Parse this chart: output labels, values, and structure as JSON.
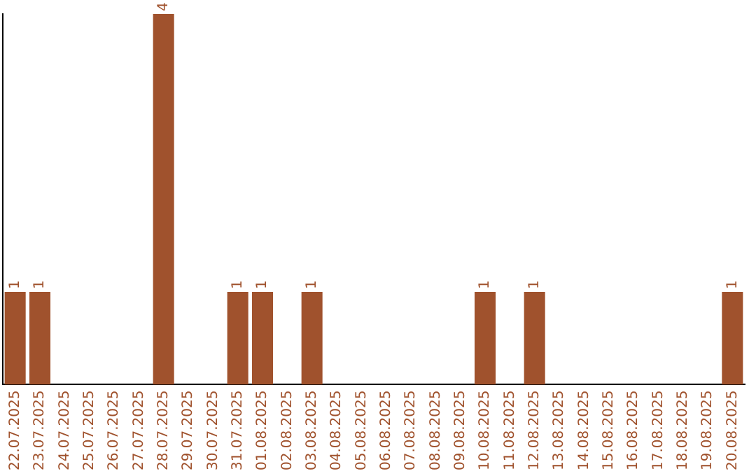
{
  "chart_data": {
    "type": "bar",
    "categories": [
      "22.07.2025",
      "23.07.2025",
      "24.07.2025",
      "25.07.2025",
      "26.07.2025",
      "27.07.2025",
      "28.07.2025",
      "29.07.2025",
      "30.07.2025",
      "31.07.2025",
      "01.08.2025",
      "02.08.2025",
      "03.08.2025",
      "04.08.2025",
      "05.08.2025",
      "06.08.2025",
      "07.08.2025",
      "08.08.2025",
      "09.08.2025",
      "10.08.2025",
      "11.08.2025",
      "12.08.2025",
      "13.08.2025",
      "14.08.2025",
      "15.08.2025",
      "16.08.2025",
      "17.08.2025",
      "18.08.2025",
      "19.08.2025",
      "20.08.2025"
    ],
    "values": [
      1,
      1,
      null,
      null,
      null,
      null,
      4,
      null,
      null,
      1,
      1,
      null,
      1,
      null,
      null,
      null,
      null,
      null,
      null,
      1,
      null,
      1,
      null,
      null,
      null,
      null,
      null,
      null,
      null,
      1
    ],
    "color": "#a0522d",
    "data_labels": true,
    "tick_labels": "x",
    "grid": false,
    "legend": false
  }
}
